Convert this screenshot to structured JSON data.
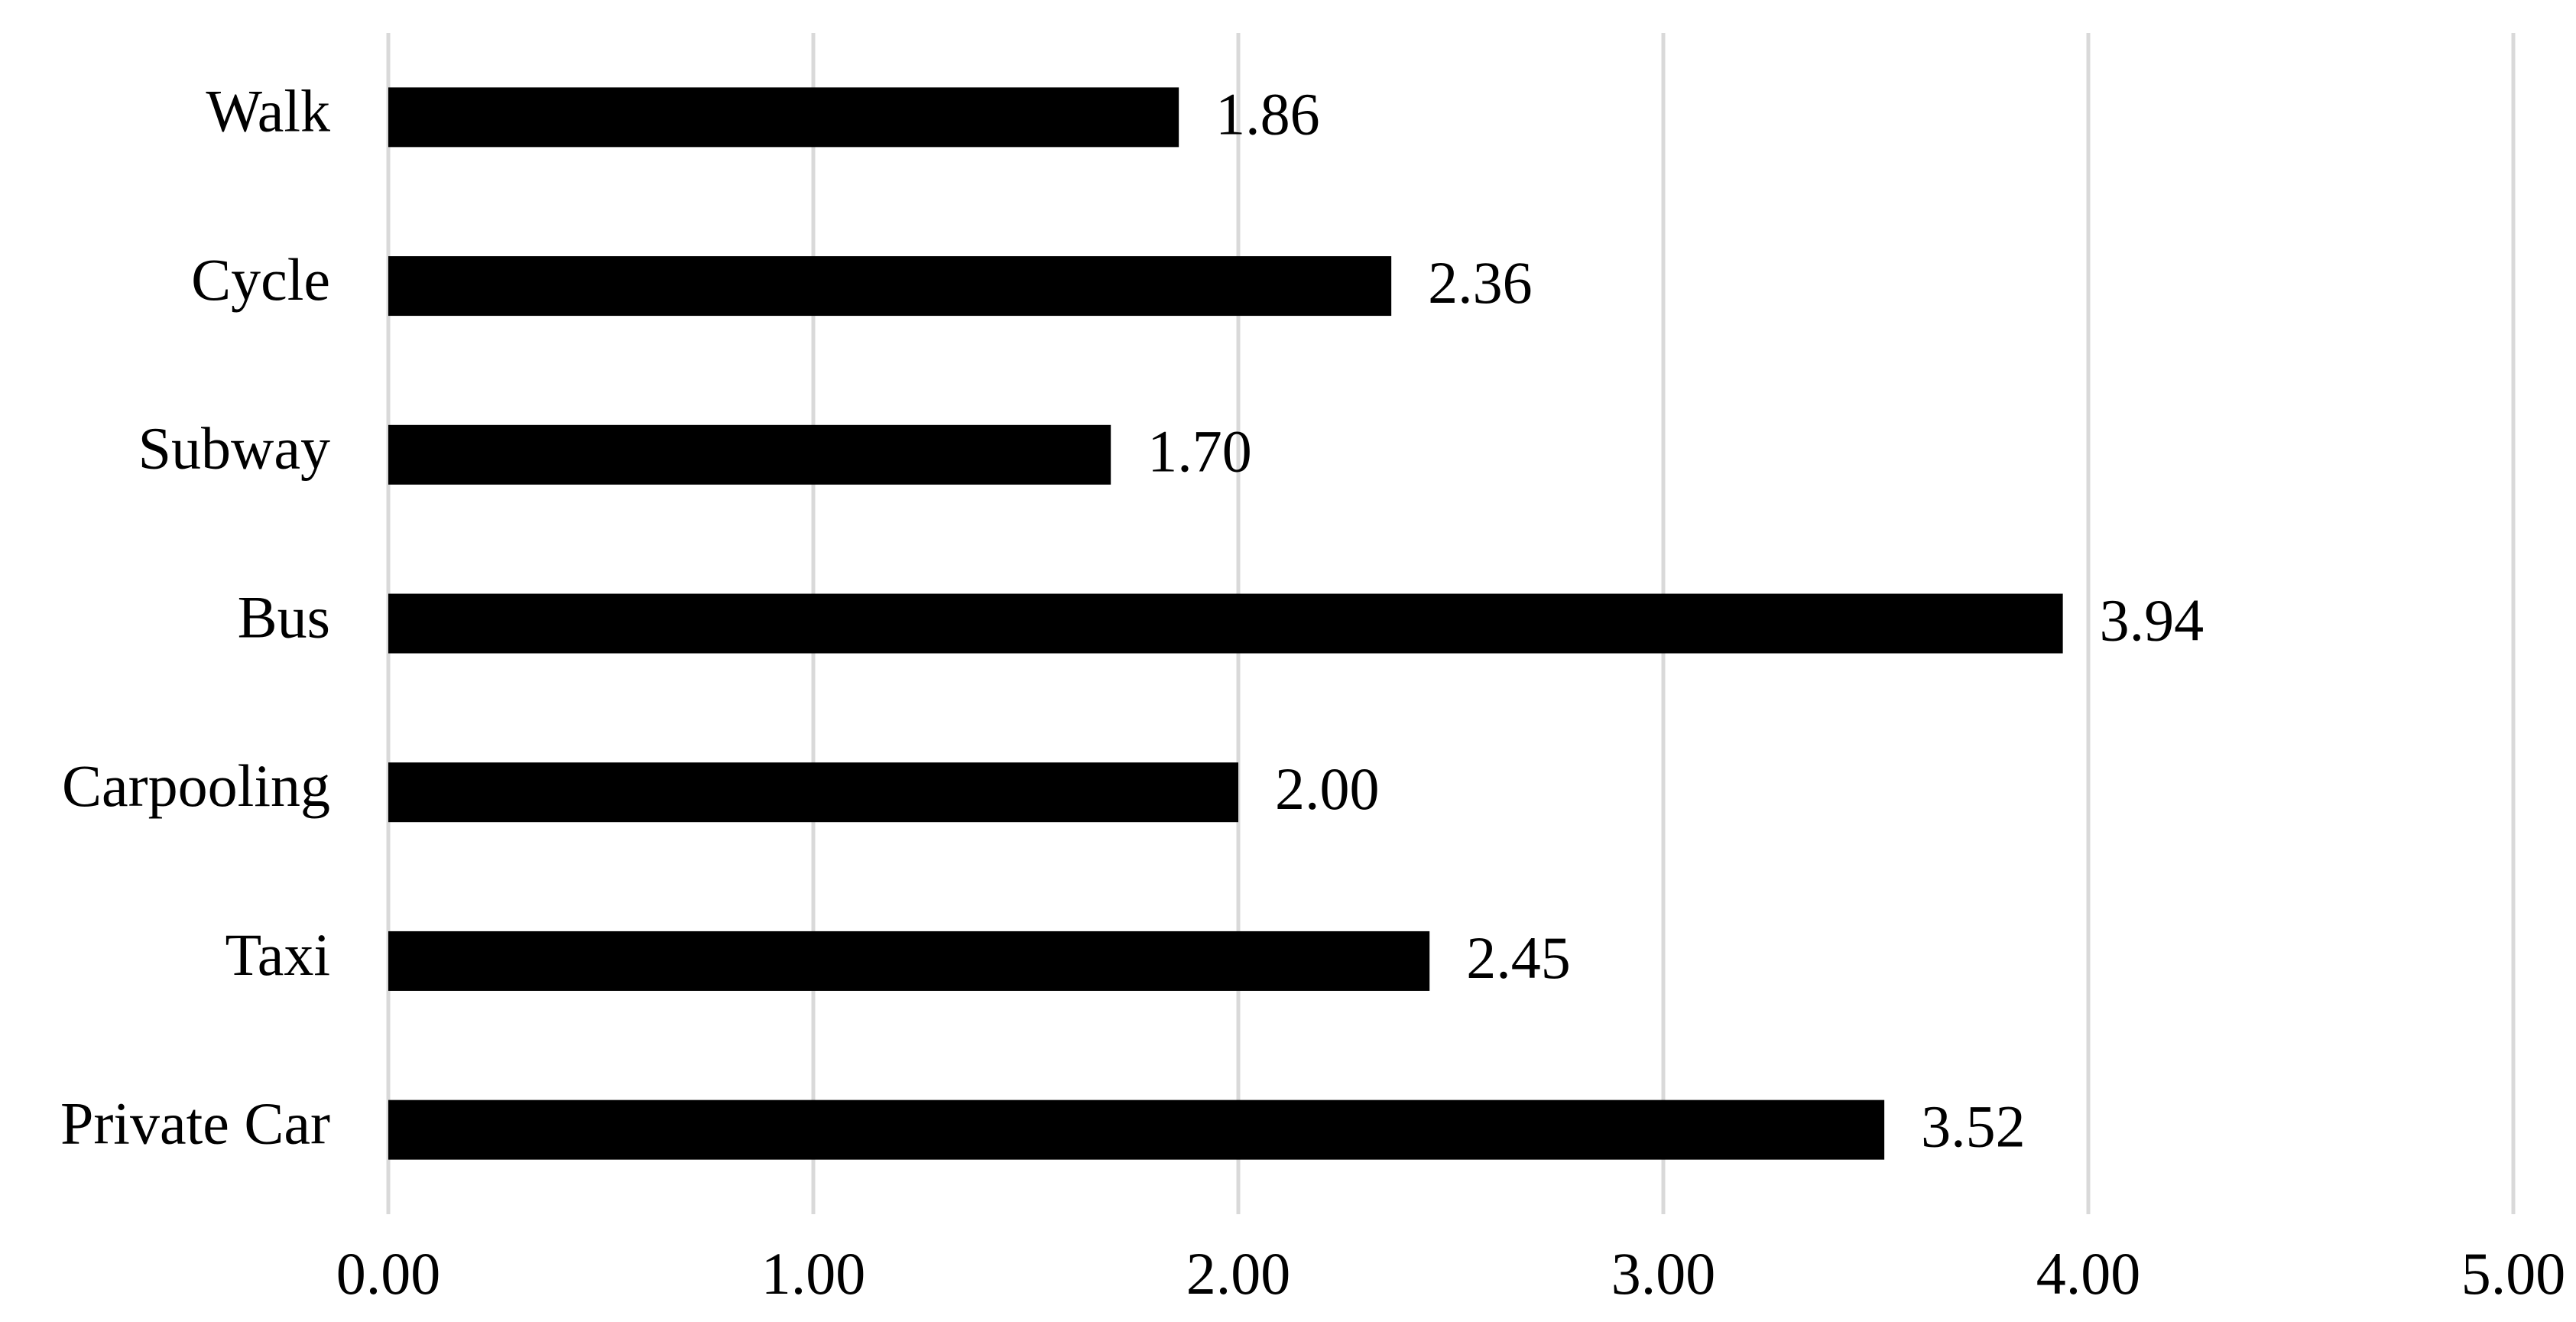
{
  "chart_data": {
    "type": "hbar",
    "categories": [
      "Walk",
      "Cycle",
      "Subway",
      "Bus",
      "Carpooling",
      "Taxi",
      "Private Car"
    ],
    "values": [
      1.86,
      2.36,
      1.7,
      3.94,
      2.0,
      2.45,
      3.52
    ],
    "value_labels": [
      "1.86",
      "2.36",
      "1.70",
      "3.94",
      "2.00",
      "2.45",
      "3.52"
    ],
    "color": "#000000",
    "xlim": [
      0,
      5
    ],
    "xticks": [
      {
        "value": 0,
        "label": "0.00"
      },
      {
        "value": 1,
        "label": "1.00"
      },
      {
        "value": 2,
        "label": "2.00"
      },
      {
        "value": 3,
        "label": "3.00"
      },
      {
        "value": 4,
        "label": "4.00"
      },
      {
        "value": 5,
        "label": "5.00"
      }
    ],
    "grid": true
  }
}
